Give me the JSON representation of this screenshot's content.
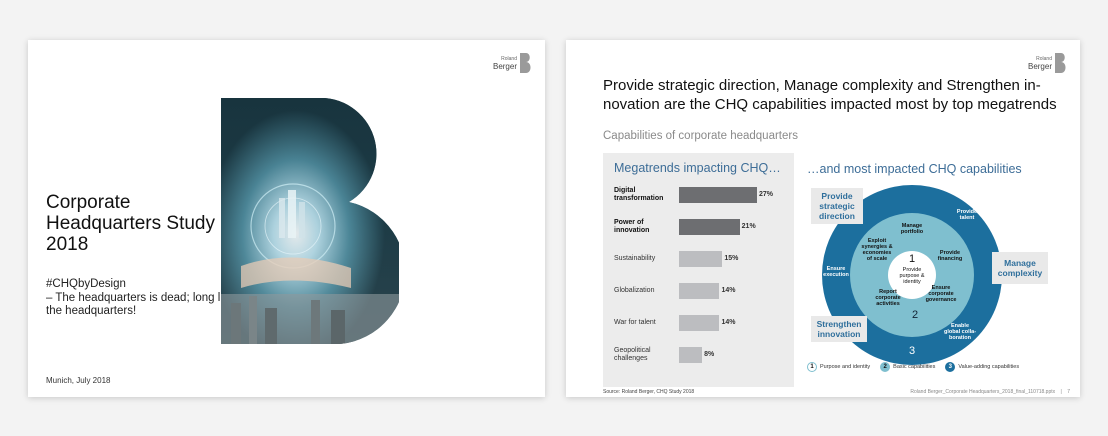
{
  "brand": {
    "name": "Berger",
    "name_small": "Roland"
  },
  "colors": {
    "dark_blue": "#1c6f9e",
    "mid_blue": "#7fbfcf",
    "light_blue": "#dceff2",
    "bar_dark": "#6d6e71",
    "bar_light": "#bcbdc0",
    "accent_text": "#3d6d97"
  },
  "slide1": {
    "title": "Corporate Headquarters Study 2018",
    "hashtag": "#CHQbyDesign",
    "tagline": "– The headquarters is dead; long live the headquarters!",
    "footer": "Munich, July 2018"
  },
  "slide2": {
    "headline": "Provide strategic direction, Manage complexity and Strengthen in-novation are the CHQ capabilities impacted most by top megatrends",
    "subtitle": "Capabilities of corporate headquarters",
    "left_panel_title": "Megatrends impacting CHQ…",
    "right_panel_title": "…and most impacted CHQ capabilities",
    "callouts": {
      "strategic": "Provide strategic direction",
      "complexity": "Manage complexity",
      "innovation": "Strengthen innovation"
    },
    "wheel": {
      "center_number": "1",
      "center_label": [
        "Provide",
        "purpose &",
        "identity"
      ],
      "ring2_number": "2",
      "ring3_number": "3",
      "inner_items": {
        "portfolio": [
          "Manage",
          "portfolio"
        ],
        "synergies": [
          "Exploit",
          "synergies &",
          "economies",
          "of scale"
        ],
        "financing": [
          "Provide",
          "financing"
        ],
        "governance": [
          "Ensure",
          "corporate",
          "governance"
        ],
        "activities": [
          "Report",
          "corporate",
          "activities"
        ]
      },
      "outer_items": {
        "talent": [
          "Provide",
          "talent"
        ],
        "execution": [
          "Ensure",
          "execution"
        ],
        "collab": [
          "Enable",
          "global colla-",
          "boration"
        ]
      }
    },
    "legend": [
      {
        "num": "1",
        "label": "Purpose and identity"
      },
      {
        "num": "2",
        "label": "Basic capabilities"
      },
      {
        "num": "3",
        "label": "Value-adding capabilities"
      }
    ],
    "source": "Source: Roland Berger, CHQ Study 2018",
    "file": "Roland Berger_Corporate Headquarters_2018_final_110718.pptx",
    "page": "7"
  },
  "chart_data": {
    "type": "bar",
    "orientation": "horizontal",
    "title": "Megatrends impacting CHQ…",
    "categories": [
      "Digital transformation",
      "Power of innovation",
      "Sustainability",
      "Globalization",
      "War for talent",
      "Geopolitical challenges"
    ],
    "values": [
      27,
      21,
      15,
      14,
      14,
      8
    ],
    "value_labels": [
      "27%",
      "21%",
      "15%",
      "14%",
      "14%",
      "8%"
    ],
    "highlighted": [
      true,
      true,
      false,
      false,
      false,
      false
    ],
    "xlim": [
      0,
      30
    ]
  }
}
